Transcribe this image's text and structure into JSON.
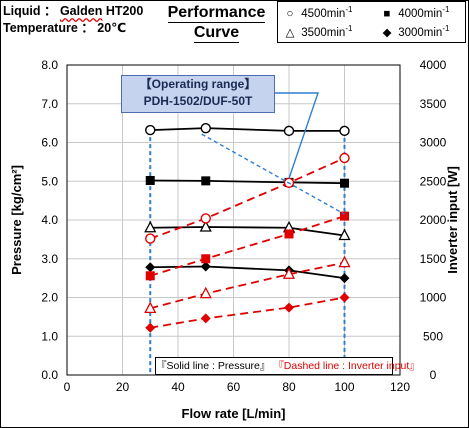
{
  "header": {
    "liquid_label": "Liquid ：",
    "liquid_value": "Galden",
    "liquid_value2": "HT200",
    "temp_label": "Temperature ：",
    "temp_value": "20℃"
  },
  "title": {
    "line1": "Performance",
    "line2": "Curve"
  },
  "legend": [
    {
      "symbol": "○",
      "label": "4500min",
      "unit_sup": "-1"
    },
    {
      "symbol": "■",
      "label": "4000min",
      "unit_sup": "-1"
    },
    {
      "symbol": "△",
      "label": "3500min",
      "unit_sup": "-1"
    },
    {
      "symbol": "◆",
      "label": "3000min",
      "unit_sup": "-1"
    }
  ],
  "callout": {
    "line1": "【Operating range】",
    "line2": "PDH-1502/DUF-50T"
  },
  "note": {
    "solid": "『Solid line : Pressure』",
    "dashed": "『Dashed line : Inverter input』"
  },
  "chart_data": {
    "type": "line",
    "xlabel": "Flow rate [L/min]",
    "ylabel": "Pressure [kg/cm²]",
    "y2label": "Inverter input [W]",
    "xlim": [
      0,
      120
    ],
    "ylim": [
      0,
      8
    ],
    "y2lim": [
      0,
      4000
    ],
    "x_ticks": [
      "0",
      "20",
      "40",
      "60",
      "80",
      "100",
      "120"
    ],
    "y_ticks": [
      "0.0",
      "1.0",
      "2.0",
      "3.0",
      "4.0",
      "5.0",
      "6.0",
      "7.0",
      "8.0"
    ],
    "y2_ticks": [
      "0",
      "500",
      "1000",
      "1500",
      "2000",
      "2500",
      "3000",
      "3500",
      "4000"
    ],
    "grid": true,
    "operating_range_x": [
      30,
      100
    ],
    "series": [
      {
        "name": "4500min-1",
        "kind": "pressure",
        "marker": "circle-open",
        "color": "#000000",
        "x": [
          30,
          50,
          80,
          100
        ],
        "y": [
          6.32,
          6.37,
          6.3,
          6.3
        ]
      },
      {
        "name": "4000min-1",
        "kind": "pressure",
        "marker": "square",
        "color": "#000000",
        "x": [
          30,
          50,
          80,
          100
        ],
        "y": [
          5.02,
          5.01,
          4.97,
          4.95
        ]
      },
      {
        "name": "3500min-1",
        "kind": "pressure",
        "marker": "triangle-open",
        "color": "#000000",
        "x": [
          30,
          50,
          80,
          100
        ],
        "y": [
          3.8,
          3.82,
          3.8,
          3.6
        ]
      },
      {
        "name": "3000min-1",
        "kind": "pressure",
        "marker": "diamond",
        "color": "#000000",
        "x": [
          30,
          50,
          80,
          100
        ],
        "y": [
          2.78,
          2.8,
          2.7,
          2.5
        ]
      },
      {
        "name": "4500min-1",
        "kind": "inverter",
        "marker": "circle-open",
        "color": "#e00000",
        "x": [
          30,
          50,
          80,
          100
        ],
        "y": [
          1760,
          2020,
          2480,
          2800
        ]
      },
      {
        "name": "4000min-1",
        "kind": "inverter",
        "marker": "square",
        "color": "#e00000",
        "x": [
          30,
          50,
          80,
          100
        ],
        "y": [
          1280,
          1500,
          1820,
          2050
        ]
      },
      {
        "name": "3500min-1",
        "kind": "inverter",
        "marker": "triangle-open",
        "color": "#e00000",
        "x": [
          30,
          50,
          80,
          100
        ],
        "y": [
          860,
          1050,
          1300,
          1450
        ]
      },
      {
        "name": "3000min-1",
        "kind": "inverter",
        "marker": "diamond",
        "color": "#e00000",
        "x": [
          30,
          50,
          80,
          100
        ],
        "y": [
          610,
          730,
          870,
          1000
        ]
      }
    ]
  }
}
